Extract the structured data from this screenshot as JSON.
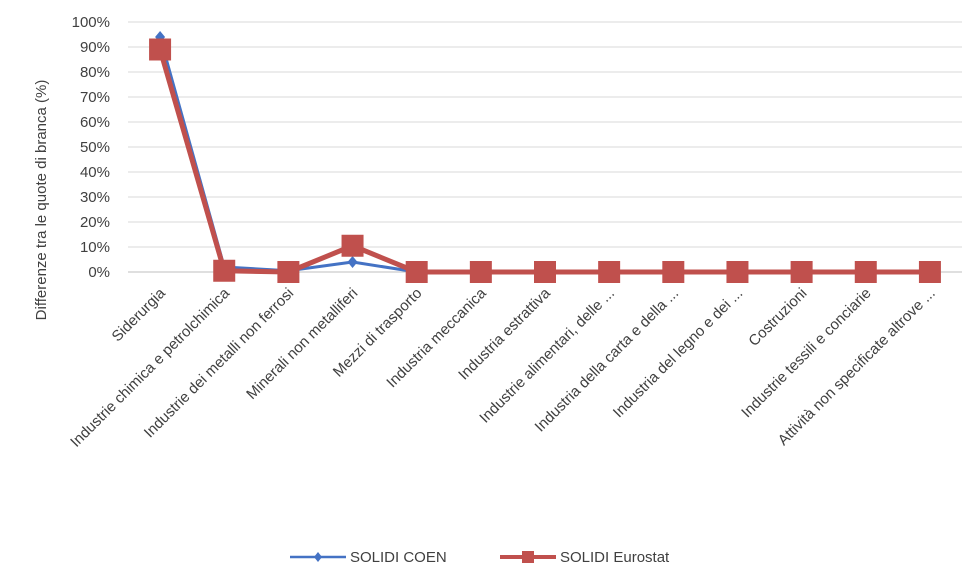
{
  "chart_data": {
    "type": "line",
    "title": "",
    "xlabel": "",
    "ylabel": "Differenze tra le quote di branca (%)",
    "ylim": [
      0,
      100
    ],
    "y_ticks": [
      "0%",
      "10%",
      "20%",
      "30%",
      "40%",
      "50%",
      "60%",
      "70%",
      "80%",
      "90%",
      "100%"
    ],
    "grid": true,
    "legend_position": "bottom",
    "categories": [
      "Siderurgia",
      "Industrie chimica e petrolchimica",
      "Industrie dei metalli non ferrosi",
      "Minerali non metalliferi",
      "Mezzi di trasporto",
      "Industria meccanica",
      "Industria estrattiva",
      "Industrie alimentari, delle ...",
      "Industria della carta e della ...",
      "Industria del legno e dei ...",
      "Costruzioni",
      "Industrie tessili e conciarie",
      "Attività non specificate altrove ..."
    ],
    "series": [
      {
        "name": "SOLIDI COEN",
        "color": "#4472c4",
        "marker": "diamond",
        "values": [
          94,
          2,
          0.5,
          4,
          0,
          0,
          0,
          0,
          0,
          0,
          0,
          0,
          0
        ]
      },
      {
        "name": "SOLIDI Eurostat",
        "color": "#c0504d",
        "marker": "square",
        "values": [
          89,
          0.5,
          0,
          10.5,
          0,
          0,
          0,
          0,
          0,
          0,
          0,
          0,
          0
        ]
      }
    ]
  }
}
